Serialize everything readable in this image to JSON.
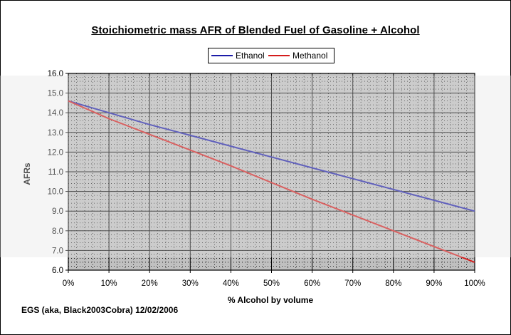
{
  "chart_data": {
    "type": "line",
    "title": "Stoichiometric mass AFR of Blended Fuel of Gasoline + Alcohol",
    "xlabel": "% Alcohol by volume",
    "ylabel": "AFRs",
    "x": [
      0,
      10,
      20,
      30,
      40,
      50,
      60,
      70,
      80,
      90,
      100
    ],
    "x_tick_labels": [
      "0%",
      "10%",
      "20%",
      "30%",
      "40%",
      "50%",
      "60%",
      "70%",
      "80%",
      "90%",
      "100%"
    ],
    "y_tick_labels": [
      "6.0",
      "7.0",
      "8.0",
      "9.0",
      "10.0",
      "11.0",
      "12.0",
      "13.0",
      "14.0",
      "15.0",
      "16.0"
    ],
    "ylim": [
      6.0,
      16.0
    ],
    "xlim": [
      0,
      100
    ],
    "series": [
      {
        "name": "Ethanol",
        "color": "#1c1ca8",
        "values": [
          14.6,
          14.0,
          13.4,
          12.85,
          12.3,
          11.75,
          11.2,
          10.65,
          10.1,
          9.55,
          9.0
        ]
      },
      {
        "name": "Methanol",
        "color": "#d41c1c",
        "values": [
          14.6,
          13.7,
          12.9,
          12.1,
          11.3,
          10.45,
          9.6,
          8.8,
          8.0,
          7.2,
          6.4
        ]
      }
    ],
    "plot_background": "#c0c0c0",
    "grid": true,
    "legend_position": "top-center"
  },
  "credit": "EGS (aka, Black2003Cobra)  12/02/2006"
}
